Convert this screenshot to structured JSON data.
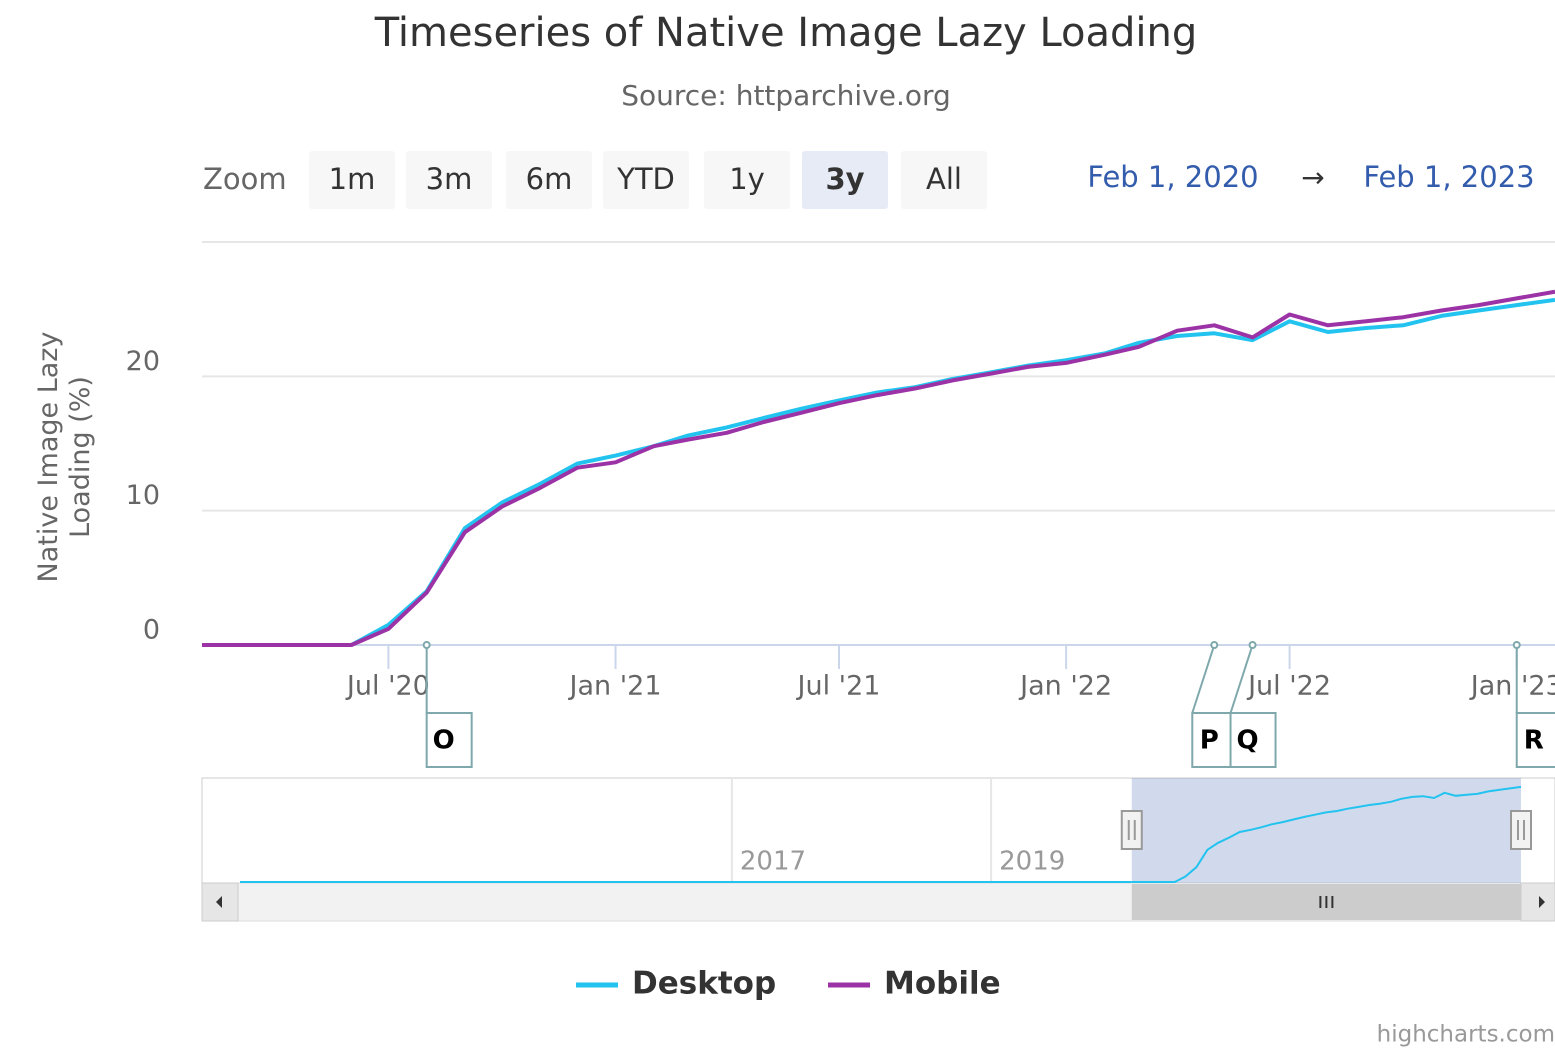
{
  "chart_data": {
    "type": "line",
    "title": "Timeseries of Native Image Lazy Loading",
    "subtitle": "Source: httparchive.org",
    "y_axis_label": "Native Image Lazy Loading (%)",
    "zoom_label": "Zoom",
    "range_buttons": [
      "1m",
      "3m",
      "6m",
      "YTD",
      "1y",
      "3y",
      "All"
    ],
    "selected_button": 5,
    "range_inputs": [
      {
        "value": "2020-02-01",
        "label": "Feb 1, 2020"
      },
      {
        "value": "2023-02-01",
        "label": "Feb 1, 2023"
      }
    ],
    "range_separator": "→",
    "x": [
      "2020-02-01",
      "2020-03-01",
      "2020-04-01",
      "2020-05-01",
      "2020-06-01",
      "2020-07-01",
      "2020-08-01",
      "2020-09-01",
      "2020-10-01",
      "2020-11-01",
      "2020-12-01",
      "2021-01-01",
      "2021-02-01",
      "2021-03-01",
      "2021-04-01",
      "2021-05-01",
      "2021-06-01",
      "2021-07-01",
      "2021-08-01",
      "2021-09-01",
      "2021-10-01",
      "2021-11-01",
      "2021-12-01",
      "2022-01-01",
      "2022-02-01",
      "2022-03-01",
      "2022-04-01",
      "2022-05-01",
      "2022-06-01",
      "2022-07-01",
      "2022-08-01",
      "2022-09-01",
      "2022-10-01",
      "2022-11-01",
      "2022-12-01",
      "2023-01-01",
      "2023-02-01"
    ],
    "series": [
      {
        "name": "Desktop",
        "color": "#22c3ee",
        "values": [
          0,
          0,
          0,
          0,
          0,
          1.5,
          4,
          8.7,
          10.6,
          12,
          13.5,
          14.1,
          14.8,
          15.6,
          16.2,
          16.9,
          17.6,
          18.2,
          18.8,
          19.2,
          19.8,
          20.3,
          20.8,
          21.2,
          21.7,
          22.5,
          23.0,
          23.2,
          22.7,
          24.1,
          23.3,
          23.6,
          23.8,
          24.5,
          24.9,
          25.3,
          25.7
        ]
      },
      {
        "name": "Mobile",
        "color": "#9b32a6",
        "values": [
          0,
          0,
          0,
          0,
          0,
          1.2,
          3.9,
          8.4,
          10.3,
          11.7,
          13.2,
          13.6,
          14.8,
          15.3,
          15.8,
          16.6,
          17.3,
          18.0,
          18.6,
          19.1,
          19.7,
          20.2,
          20.7,
          21.0,
          21.6,
          22.2,
          23.4,
          23.8,
          22.9,
          24.6,
          23.8,
          24.1,
          24.4,
          24.9,
          25.3,
          25.8,
          26.3
        ]
      }
    ],
    "xlim": [
      "2020-02-01",
      "2023-02-01"
    ],
    "xticks": [
      {
        "value": "2020-07-01",
        "label": "Jul '20"
      },
      {
        "value": "2021-01-01",
        "label": "Jan '21"
      },
      {
        "value": "2021-07-01",
        "label": "Jul '21"
      },
      {
        "value": "2022-01-01",
        "label": "Jan '22"
      },
      {
        "value": "2022-07-01",
        "label": "Jul '22"
      },
      {
        "value": "2023-01-01",
        "label": "Jan '23"
      }
    ],
    "ylim": [
      0,
      30
    ],
    "yticks": [
      0,
      10,
      20
    ],
    "grid": true,
    "flags": [
      {
        "x": "2020-08-01",
        "title": "O"
      },
      {
        "x": "2022-05-01",
        "title": "P"
      },
      {
        "x": "2022-06-01",
        "title": "Q"
      },
      {
        "x": "2023-01-01",
        "title": "R"
      }
    ],
    "navigator": {
      "xlim": [
        "2012-12-01",
        "2023-02-01"
      ],
      "xticks": [
        {
          "value": "2017-01-01",
          "label": "2017"
        },
        {
          "value": "2019-01-01",
          "label": "2019"
        }
      ]
    },
    "legend": "bottom",
    "credits": "highcharts.com"
  }
}
